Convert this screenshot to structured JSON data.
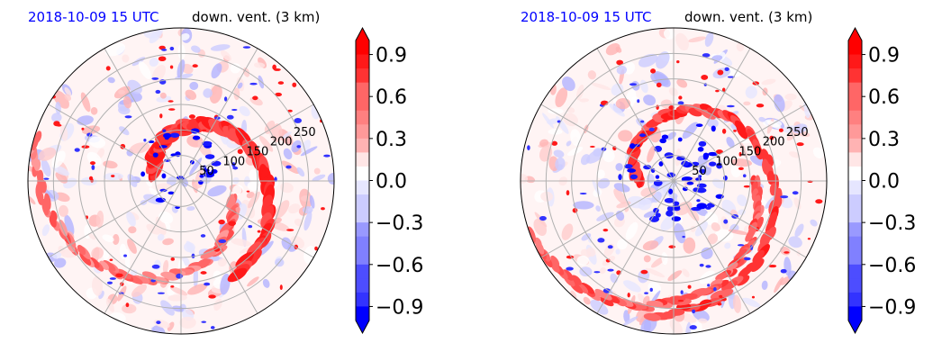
{
  "chart_data": [
    {
      "type": "heatmap",
      "projection": "polar",
      "date_label": "2018-10-09 15 UTC",
      "title": "down. vent. (3 km)",
      "radial_ticks": [
        "50",
        "100",
        "150",
        "200",
        "250"
      ],
      "radial_values": [
        50,
        100,
        150,
        200,
        250
      ],
      "angular_grid_deg": [
        0,
        30,
        60,
        90,
        120,
        150,
        180,
        210,
        240,
        270,
        300,
        330
      ],
      "grid": true,
      "colorbar": {
        "ticks": [
          "−0.9",
          "−0.6",
          "−0.3",
          "0.0",
          "0.3",
          "0.6",
          "0.9"
        ],
        "range": [
          -1.0,
          1.0
        ],
        "levels": 20,
        "extend": "both",
        "cmap": "bwr",
        "low_color": "#0000ff",
        "high_color": "#ff0000"
      }
    },
    {
      "type": "heatmap",
      "projection": "polar",
      "date_label": "2018-10-09 15 UTC",
      "title": "down. vent. (3 km)",
      "radial_ticks": [
        "50",
        "100",
        "150",
        "200",
        "250"
      ],
      "radial_values": [
        50,
        100,
        150,
        200,
        250
      ],
      "angular_grid_deg": [
        0,
        30,
        60,
        90,
        120,
        150,
        180,
        210,
        240,
        270,
        300,
        330
      ],
      "grid": true,
      "colorbar": {
        "ticks": [
          "−0.9",
          "−0.6",
          "−0.3",
          "0.0",
          "0.3",
          "0.6",
          "0.9"
        ],
        "range": [
          -1.0,
          1.0
        ],
        "levels": 20,
        "extend": "both",
        "cmap": "bwr",
        "low_color": "#0000ff",
        "high_color": "#ff0000"
      }
    }
  ]
}
